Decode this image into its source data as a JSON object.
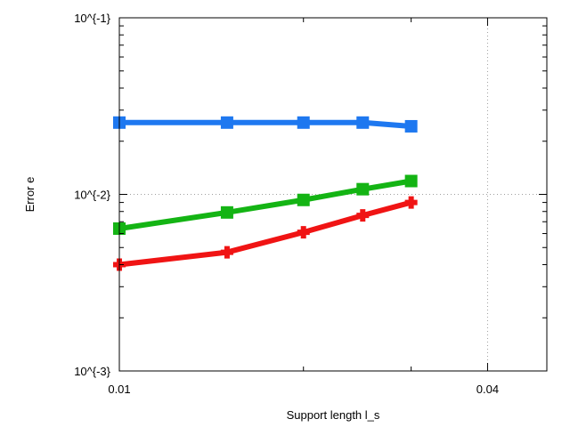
{
  "chart_data": {
    "type": "line",
    "title": "",
    "xlabel": "Support length l_s",
    "ylabel": "Error e",
    "xscale": "log",
    "yscale": "log",
    "xlim": [
      0.01,
      0.05
    ],
    "ylim": [
      0.001,
      0.1
    ],
    "grid": true,
    "xticks": [
      {
        "value": 0.01,
        "label": "0.01"
      },
      {
        "value": 0.04,
        "label": "0.04"
      }
    ],
    "yticks": [
      {
        "value": 0.1,
        "label": "10^{-1}"
      },
      {
        "value": 0.01,
        "label": "10^{-2}"
      },
      {
        "value": 0.001,
        "label": "10^{-3}"
      }
    ],
    "series": [
      {
        "color": "#1e78f0",
        "marker": "square",
        "x": [
          0.01,
          0.015,
          0.02,
          0.025,
          0.03
        ],
        "y": [
          0.0255,
          0.0255,
          0.0255,
          0.0255,
          0.0243
        ]
      },
      {
        "color": "#14b414",
        "marker": "square",
        "x": [
          0.01,
          0.015,
          0.02,
          0.025,
          0.03
        ],
        "y": [
          0.0064,
          0.0079,
          0.0093,
          0.0107,
          0.0119
        ]
      },
      {
        "color": "#f01414",
        "marker": "cross",
        "x": [
          0.01,
          0.015,
          0.02,
          0.025,
          0.03
        ],
        "y": [
          0.004,
          0.0047,
          0.0061,
          0.0076,
          0.009
        ]
      }
    ]
  }
}
